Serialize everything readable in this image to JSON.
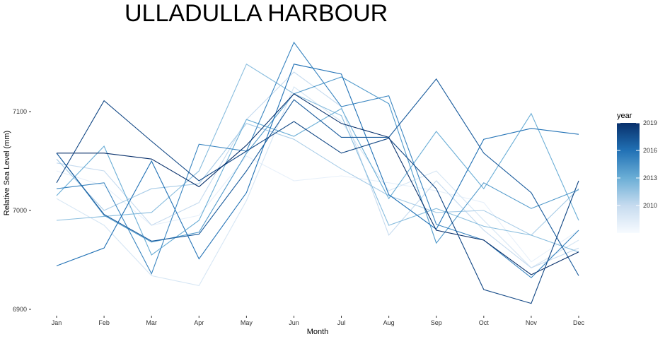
{
  "chart_data": {
    "type": "line",
    "title": "ULLADULLA HARBOUR",
    "xlabel": "Month",
    "ylabel": "Relative Sea Level (mm)",
    "categories": [
      "Jan",
      "Feb",
      "Mar",
      "Apr",
      "May",
      "Jun",
      "Jul",
      "Aug",
      "Sep",
      "Oct",
      "Nov",
      "Dec"
    ],
    "ylim": [
      6900,
      7170
    ],
    "yticks": [
      6900,
      7000,
      7100
    ],
    "grid": false,
    "legend": {
      "title": "year",
      "position": "right",
      "type": "colorbar",
      "range": [
        2007,
        2019
      ],
      "ticks": [
        2010,
        2013,
        2016,
        2019
      ],
      "color_low": "#f7fbff",
      "color_high": "#08306b"
    },
    "series": [
      {
        "year": 2008,
        "values": [
          7040,
          7025,
          6985,
          6995,
          7055,
          7030,
          7035,
          7028,
          7020,
          7008,
          6948,
          6980
        ]
      },
      {
        "year": 2009,
        "values": [
          7012,
          6985,
          6934,
          6924,
          7010,
          7125,
          7090,
          7020,
          7040,
          6990,
          6942,
          6970
        ]
      },
      {
        "year": 2010,
        "values": [
          7048,
          7040,
          6985,
          7008,
          7092,
          7140,
          7105,
          6975,
          7030,
          6980,
          6942,
          6962
        ]
      },
      {
        "year": 2011,
        "values": [
          7052,
          7000,
          7022,
          7027,
          7088,
          7072,
          7042,
          7015,
          6998,
          7000,
          6975,
          7022
        ]
      },
      {
        "year": 2012,
        "values": [
          6990,
          6994,
          6998,
          7040,
          7148,
          7118,
          7096,
          6985,
          7002,
          6984,
          6975,
          6958
        ]
      },
      {
        "year": 2013,
        "values": [
          7015,
          7065,
          6955,
          6990,
          7092,
          7075,
          7103,
          7012,
          7080,
          7022,
          7098,
          6990
        ]
      },
      {
        "year": 2014,
        "values": [
          7058,
          6995,
          6968,
          6978,
          7058,
          7118,
          7135,
          7108,
          6967,
          7028,
          7002,
          7021
        ]
      },
      {
        "year": 2015,
        "values": [
          7022,
          7028,
          6936,
          7067,
          7060,
          7170,
          7105,
          7116,
          6986,
          6970,
          6932,
          6980
        ]
      },
      {
        "year": 2016,
        "values": [
          6944,
          6962,
          7050,
          6951,
          7018,
          7148,
          7138,
          7016,
          6981,
          7072,
          7083,
          7077
        ]
      },
      {
        "year": 2017,
        "values": [
          7058,
          6996,
          6969,
          6976,
          7040,
          7112,
          7074,
          7074,
          7133,
          7058,
          7018,
          6934
        ]
      },
      {
        "year": 2018,
        "values": [
          7028,
          7111,
          7070,
          7030,
          7060,
          7090,
          7058,
          7073,
          7022,
          6920,
          6906,
          7030
        ]
      },
      {
        "year": 2019,
        "values": [
          7058,
          7058,
          7052,
          7024,
          7066,
          7118,
          7088,
          7074,
          6980,
          6970,
          6935,
          6958
        ]
      }
    ]
  }
}
